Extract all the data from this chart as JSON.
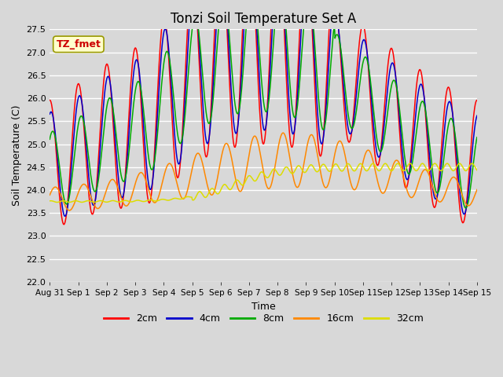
{
  "title": "Tonzi Soil Temperature Set A",
  "xlabel": "Time",
  "ylabel": "Soil Temperature (C)",
  "ylim": [
    22.0,
    27.5
  ],
  "yticks": [
    22.0,
    22.5,
    23.0,
    23.5,
    24.0,
    24.5,
    25.0,
    25.5,
    26.0,
    26.5,
    27.0,
    27.5
  ],
  "xtick_labels": [
    "Aug 31",
    "Sep 1",
    "Sep 2",
    "Sep 3",
    "Sep 4",
    "Sep 5",
    "Sep 6",
    "Sep 7",
    "Sep 8",
    "Sep 9",
    "Sep 10",
    "Sep 11",
    "Sep 12",
    "Sep 13",
    "Sep 14",
    "Sep 15"
  ],
  "series_colors": {
    "2cm": "#ff0000",
    "4cm": "#0000cc",
    "8cm": "#00aa00",
    "16cm": "#ff8800",
    "32cm": "#dddd00"
  },
  "series_linewidth": 1.1,
  "annotation_text": "TZ_fmet",
  "bg_color": "#d8d8d8",
  "plot_bg_color": "#d8d8d8",
  "grid_color": "#ffffff",
  "title_fontsize": 12
}
